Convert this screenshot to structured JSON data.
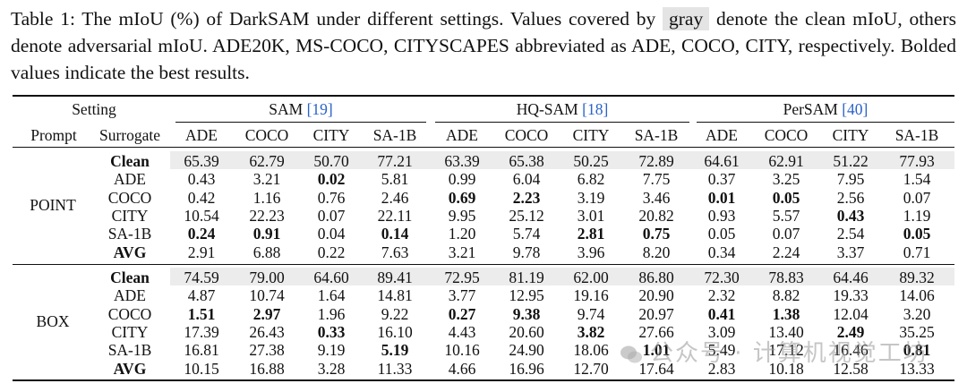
{
  "caption": {
    "before_gray": "Table 1: The mIoU (%) of DarkSAM under different settings. Values covered by ",
    "gray_word": "gray",
    "after_gray": " denote the clean mIoU, others denote adversarial mIoU. ADE20K, MS-COCO, CITYSCAPES abbreviated as ADE, COCO, CITY, respectively. Bolded values indicate the best results."
  },
  "header": {
    "setting": "Setting",
    "prompt": "Prompt",
    "surrogate": "Surrogate",
    "models": [
      {
        "name": "SAM",
        "ref": "[19]"
      },
      {
        "name": "HQ-SAM",
        "ref": "[18]"
      },
      {
        "name": "PerSAM",
        "ref": "[40]"
      }
    ],
    "datasets": [
      "ADE",
      "COCO",
      "CITY",
      "SA-1B"
    ]
  },
  "groups": [
    {
      "prompt": "POINT",
      "rows": [
        {
          "surrogate": "Clean",
          "values": [
            "65.39",
            "62.79",
            "50.70",
            "77.21",
            "63.39",
            "65.38",
            "50.25",
            "72.89",
            "64.61",
            "62.91",
            "51.22",
            "77.93"
          ],
          "bold": []
        },
        {
          "surrogate": "ADE",
          "values": [
            "0.43",
            "3.21",
            "0.02",
            "5.81",
            "0.99",
            "6.04",
            "6.82",
            "7.75",
            "0.37",
            "3.25",
            "7.95",
            "1.54"
          ],
          "bold": [
            2
          ]
        },
        {
          "surrogate": "COCO",
          "values": [
            "0.42",
            "1.16",
            "0.76",
            "2.46",
            "0.69",
            "2.23",
            "3.19",
            "3.46",
            "0.01",
            "0.05",
            "2.56",
            "0.07"
          ],
          "bold": [
            4,
            5,
            8,
            9
          ]
        },
        {
          "surrogate": "CITY",
          "values": [
            "10.54",
            "22.23",
            "0.07",
            "22.11",
            "9.95",
            "25.12",
            "3.01",
            "20.82",
            "0.93",
            "5.57",
            "0.43",
            "1.19"
          ],
          "bold": [
            10
          ]
        },
        {
          "surrogate": "SA-1B",
          "values": [
            "0.24",
            "0.91",
            "0.04",
            "0.14",
            "1.20",
            "5.74",
            "2.81",
            "0.75",
            "0.05",
            "0.07",
            "2.54",
            "0.05"
          ],
          "bold": [
            0,
            1,
            3,
            6,
            7,
            11
          ]
        },
        {
          "surrogate": "AVG",
          "values": [
            "2.91",
            "6.88",
            "0.22",
            "7.63",
            "3.21",
            "9.78",
            "3.96",
            "8.20",
            "0.34",
            "2.24",
            "3.37",
            "0.71"
          ],
          "bold": []
        }
      ]
    },
    {
      "prompt": "BOX",
      "rows": [
        {
          "surrogate": "Clean",
          "values": [
            "74.59",
            "79.00",
            "64.60",
            "89.41",
            "72.95",
            "81.19",
            "62.00",
            "86.80",
            "72.30",
            "78.83",
            "64.46",
            "89.32"
          ],
          "bold": []
        },
        {
          "surrogate": "ADE",
          "values": [
            "4.87",
            "10.74",
            "1.64",
            "14.81",
            "3.77",
            "12.95",
            "19.16",
            "20.90",
            "2.32",
            "8.82",
            "19.33",
            "14.06"
          ],
          "bold": []
        },
        {
          "surrogate": "COCO",
          "values": [
            "1.51",
            "2.97",
            "1.96",
            "9.22",
            "0.27",
            "9.38",
            "9.74",
            "20.97",
            "0.41",
            "1.38",
            "12.04",
            "3.20"
          ],
          "bold": [
            0,
            1,
            4,
            5,
            8,
            9
          ]
        },
        {
          "surrogate": "CITY",
          "values": [
            "17.39",
            "26.43",
            "0.33",
            "16.10",
            "4.43",
            "20.60",
            "3.82",
            "27.66",
            "3.09",
            "13.40",
            "2.49",
            "35.25"
          ],
          "bold": [
            2,
            6,
            10
          ]
        },
        {
          "surrogate": "SA-1B",
          "values": [
            "16.81",
            "27.38",
            "9.19",
            "5.19",
            "10.16",
            "24.90",
            "18.06",
            "1.01",
            "5.49",
            "17.12",
            "16.46",
            "0.81"
          ],
          "bold": [
            3,
            7,
            11
          ]
        },
        {
          "surrogate": "AVG",
          "values": [
            "10.15",
            "16.88",
            "3.28",
            "11.33",
            "4.66",
            "16.96",
            "12.70",
            "17.64",
            "2.83",
            "10.18",
            "12.58",
            "13.33"
          ],
          "bold": []
        }
      ]
    }
  ],
  "watermark": "公众号 · 计算机视觉工坊"
}
